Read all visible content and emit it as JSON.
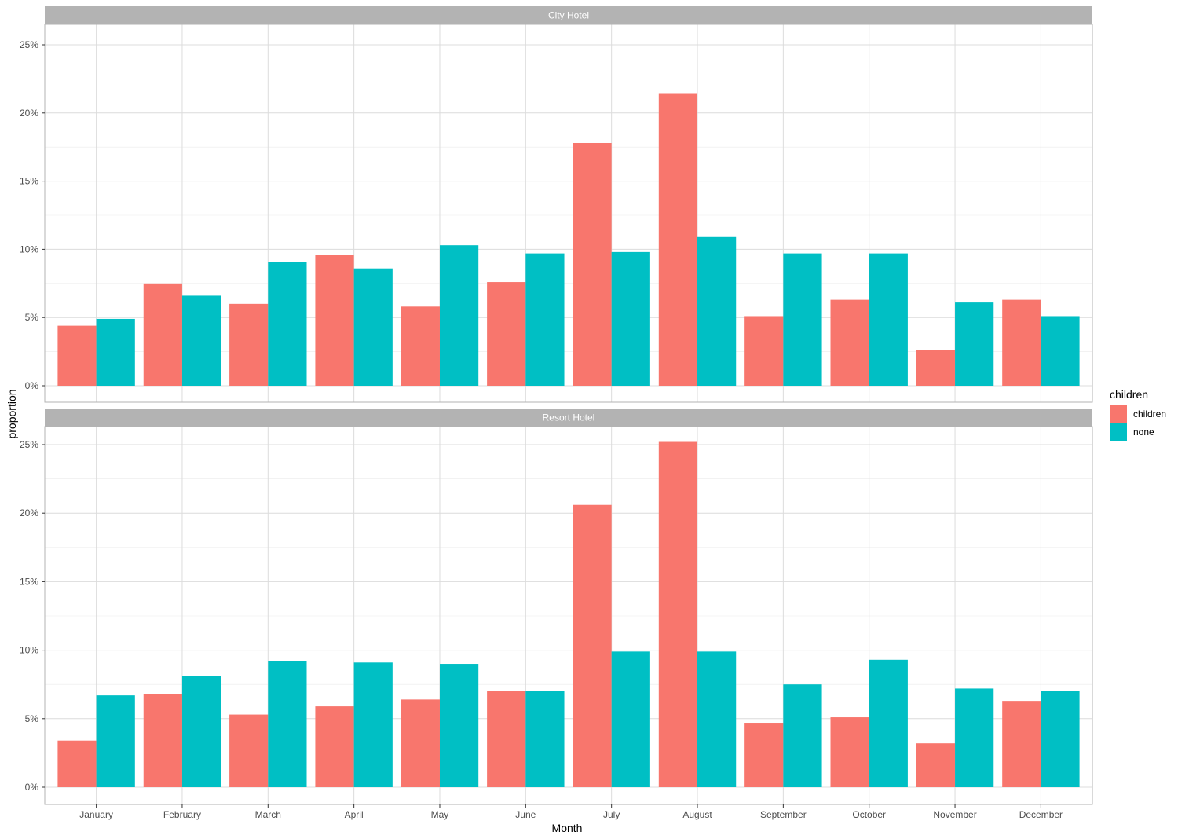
{
  "chart_data": {
    "type": "bar",
    "xlabel": "Month",
    "ylabel": "proportion",
    "ylim": [
      0,
      0.25
    ],
    "y_ticks": [
      "0%",
      "5%",
      "10%",
      "15%",
      "20%",
      "25%"
    ],
    "y_tick_values": [
      0,
      0.05,
      0.1,
      0.15,
      0.2,
      0.25
    ],
    "categories": [
      "January",
      "February",
      "March",
      "April",
      "May",
      "June",
      "July",
      "August",
      "September",
      "October",
      "November",
      "December"
    ],
    "legend": {
      "title": "children",
      "position": "right"
    },
    "grid": true,
    "colors": {
      "children": "#F8766D",
      "none": "#00BFC4"
    },
    "panels": [
      {
        "title": "City Hotel",
        "series": [
          {
            "name": "children",
            "values": [
              0.044,
              0.075,
              0.06,
              0.096,
              0.058,
              0.076,
              0.178,
              0.214,
              0.051,
              0.063,
              0.026,
              0.063
            ]
          },
          {
            "name": "none",
            "values": [
              0.049,
              0.066,
              0.091,
              0.086,
              0.103,
              0.097,
              0.098,
              0.109,
              0.097,
              0.097,
              0.061,
              0.051
            ]
          }
        ]
      },
      {
        "title": "Resort Hotel",
        "series": [
          {
            "name": "children",
            "values": [
              0.034,
              0.068,
              0.053,
              0.059,
              0.064,
              0.07,
              0.206,
              0.252,
              0.047,
              0.051,
              0.032,
              0.063
            ]
          },
          {
            "name": "none",
            "values": [
              0.067,
              0.081,
              0.092,
              0.091,
              0.09,
              0.07,
              0.099,
              0.099,
              0.075,
              0.093,
              0.072,
              0.07
            ]
          }
        ]
      }
    ]
  }
}
